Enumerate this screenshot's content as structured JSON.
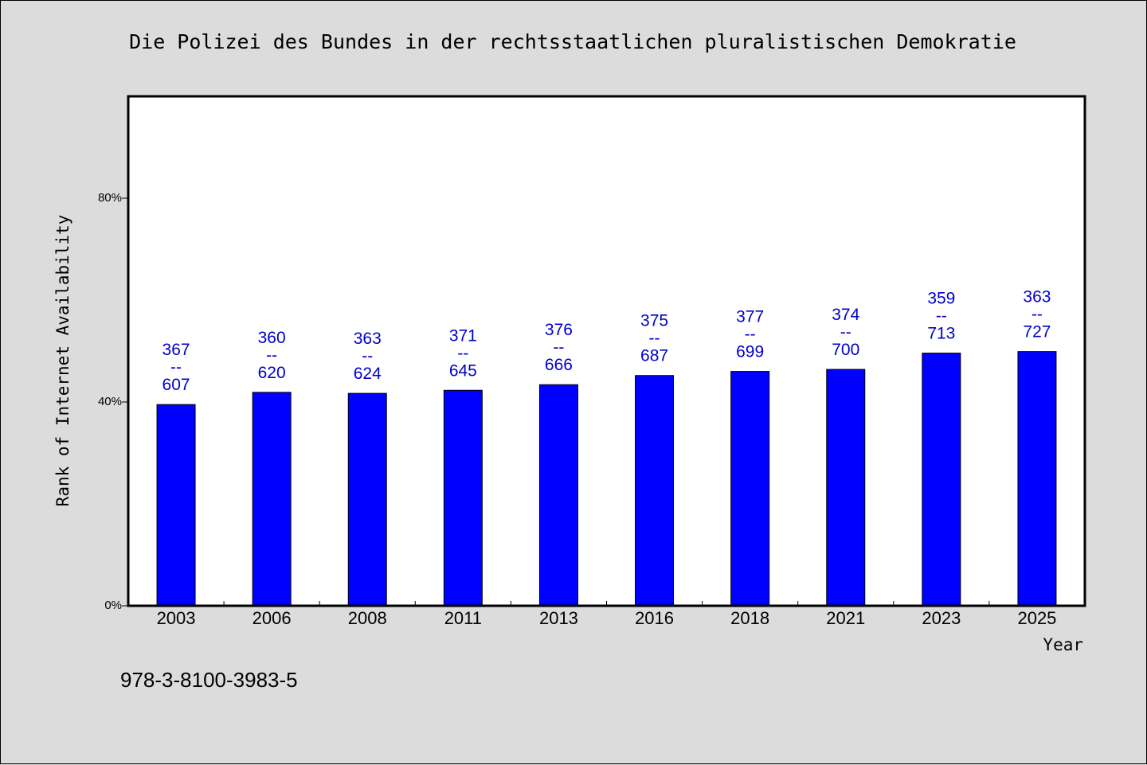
{
  "chart_data": {
    "type": "bar",
    "title": "Die Polizei des Bundes in der rechtsstaatlichen pluralistischen Demokratie",
    "xlabel": "Year",
    "ylabel": "Rank of Internet Availability",
    "categories": [
      "2003",
      "2006",
      "2008",
      "2011",
      "2013",
      "2016",
      "2018",
      "2021",
      "2023",
      "2025"
    ],
    "values": [
      39.5,
      41.9,
      41.7,
      42.3,
      43.4,
      45.2,
      46.0,
      46.4,
      49.6,
      49.9
    ],
    "data_labels": [
      [
        "367",
        "--",
        "607"
      ],
      [
        "360",
        "--",
        "620"
      ],
      [
        "363",
        "--",
        "624"
      ],
      [
        "371",
        "--",
        "645"
      ],
      [
        "376",
        "--",
        "666"
      ],
      [
        "375",
        "--",
        "687"
      ],
      [
        "377",
        "--",
        "699"
      ],
      [
        "374",
        "--",
        "700"
      ],
      [
        "359",
        "--",
        "713"
      ],
      [
        "363",
        "--",
        "727"
      ]
    ],
    "ylim": [
      0,
      100
    ],
    "yticks": [
      0,
      40,
      80
    ],
    "ytick_labels": [
      "0%",
      "40%",
      "80%"
    ],
    "grid": false,
    "legend": "none",
    "bar_color": "#0000ff",
    "label_color": "#0000cc"
  },
  "footer": {
    "isbn": "978-3-8100-3983-5"
  }
}
